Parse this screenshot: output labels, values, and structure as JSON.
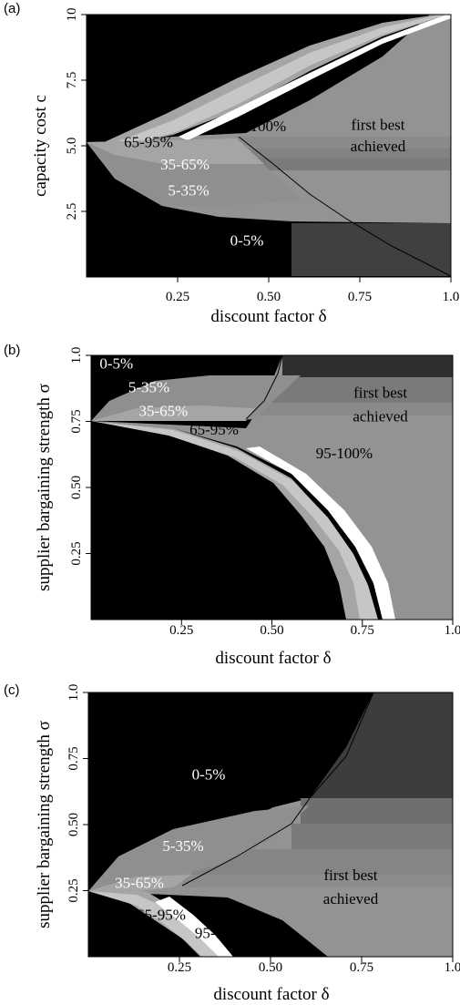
{
  "chart_data": [
    {
      "type": "heatmap",
      "panel": "(a)",
      "xlabel": "discount factor δ",
      "ylabel": "capacity cost c",
      "x_ticks": [
        "0.25",
        "0.50",
        "0.75",
        "1.0"
      ],
      "x_tick_values": [
        0.25,
        0.5,
        0.75,
        1.0
      ],
      "y_ticks": [
        "2.5",
        "5.0",
        "7.5",
        "10"
      ],
      "y_tick_values": [
        2.5,
        5.0,
        7.5,
        10
      ],
      "xlim": [
        0,
        1
      ],
      "ylim": [
        0,
        10
      ],
      "colors": {
        "0-5%": "#000000",
        "5-35%": "#8f8f8f",
        "35-65%": "#a5a5a5",
        "65-95%": "#c6c6c6",
        "95-100%": "#ffffff",
        "first best achieved": "#939393"
      },
      "regions": [
        {
          "name": "0-5%",
          "x": 0.44,
          "y": 1.2,
          "color": "#ffffff"
        },
        {
          "name": "5-35%",
          "x": 0.28,
          "y": 3.1,
          "color": "#ffffff"
        },
        {
          "name": "35-65%",
          "x": 0.27,
          "y": 4.1,
          "color": "#ffffff"
        },
        {
          "name": "65-95%",
          "x": 0.17,
          "y": 4.95,
          "color": "#000000"
        },
        {
          "name": "95-100%",
          "x": 0.47,
          "y": 5.55,
          "color": "#000000"
        },
        {
          "name": "first best",
          "x": 0.8,
          "y": 5.6,
          "color": "#000000"
        },
        {
          "name": "achieved",
          "x": 0.8,
          "y": 4.8,
          "color": "#000000"
        }
      ]
    },
    {
      "type": "heatmap",
      "panel": "(b)",
      "xlabel": "discount factor δ",
      "ylabel": "supplier bargaining strength σ",
      "x_ticks": [
        "0.25",
        "0.50",
        "0.75",
        "1.0"
      ],
      "x_tick_values": [
        0.25,
        0.5,
        0.75,
        1.0
      ],
      "y_ticks": [
        "0.25",
        "0.50",
        "0.75",
        "1.0"
      ],
      "y_tick_values": [
        0.25,
        0.5,
        0.75,
        1.0
      ],
      "xlim": [
        0,
        1
      ],
      "ylim": [
        0,
        1
      ],
      "colors": {
        "0-5%": "#000000",
        "5-35%": "#8f8f8f",
        "35-65%": "#a5a5a5",
        "65-95%": "#c6c6c6",
        "95-100%": "#ffffff",
        "first best achieved": "#939393"
      },
      "regions": [
        {
          "name": "0-5%",
          "x": 0.07,
          "y": 0.95,
          "color": "#ffffff"
        },
        {
          "name": "5-35%",
          "x": 0.16,
          "y": 0.86,
          "color": "#ffffff"
        },
        {
          "name": "35-65%",
          "x": 0.2,
          "y": 0.77,
          "color": "#ffffff"
        },
        {
          "name": "65-95%",
          "x": 0.34,
          "y": 0.7,
          "color": "#000000"
        },
        {
          "name": "95-100%",
          "x": 0.7,
          "y": 0.61,
          "color": "#000000"
        },
        {
          "name": "first best",
          "x": 0.8,
          "y": 0.84,
          "color": "#000000"
        },
        {
          "name": "achieved",
          "x": 0.8,
          "y": 0.75,
          "color": "#000000"
        }
      ]
    },
    {
      "type": "heatmap",
      "panel": "(c)",
      "xlabel": "discount factor δ",
      "ylabel": "supplier bargaining strength σ",
      "x_ticks": [
        "0.25",
        "0.50",
        "0.75",
        "1.0"
      ],
      "x_tick_values": [
        0.25,
        0.5,
        0.75,
        1.0
      ],
      "y_ticks": [
        "0.25",
        "0.50",
        "0.75",
        "1.0"
      ],
      "y_tick_values": [
        0.25,
        0.5,
        0.75,
        1.0
      ],
      "xlim": [
        0,
        1
      ],
      "ylim": [
        0,
        1
      ],
      "colors": {
        "0-5%": "#000000",
        "5-35%": "#8f8f8f",
        "35-65%": "#a5a5a5",
        "65-95%": "#c6c6c6",
        "95-100%": "#ffffff",
        "first best achieved": "#939393"
      },
      "regions": [
        {
          "name": "0-5%",
          "x": 0.33,
          "y": 0.67,
          "color": "#ffffff"
        },
        {
          "name": "5-35%",
          "x": 0.26,
          "y": 0.4,
          "color": "#ffffff"
        },
        {
          "name": "35-65%",
          "x": 0.14,
          "y": 0.26,
          "color": "#ffffff"
        },
        {
          "name": "65-95%",
          "x": 0.2,
          "y": 0.14,
          "color": "#000000"
        },
        {
          "name": "95-100%",
          "x": 0.37,
          "y": 0.07,
          "color": "#000000"
        },
        {
          "name": "first best",
          "x": 0.72,
          "y": 0.29,
          "color": "#000000"
        },
        {
          "name": "achieved",
          "x": 0.72,
          "y": 0.2,
          "color": "#000000"
        }
      ]
    }
  ]
}
